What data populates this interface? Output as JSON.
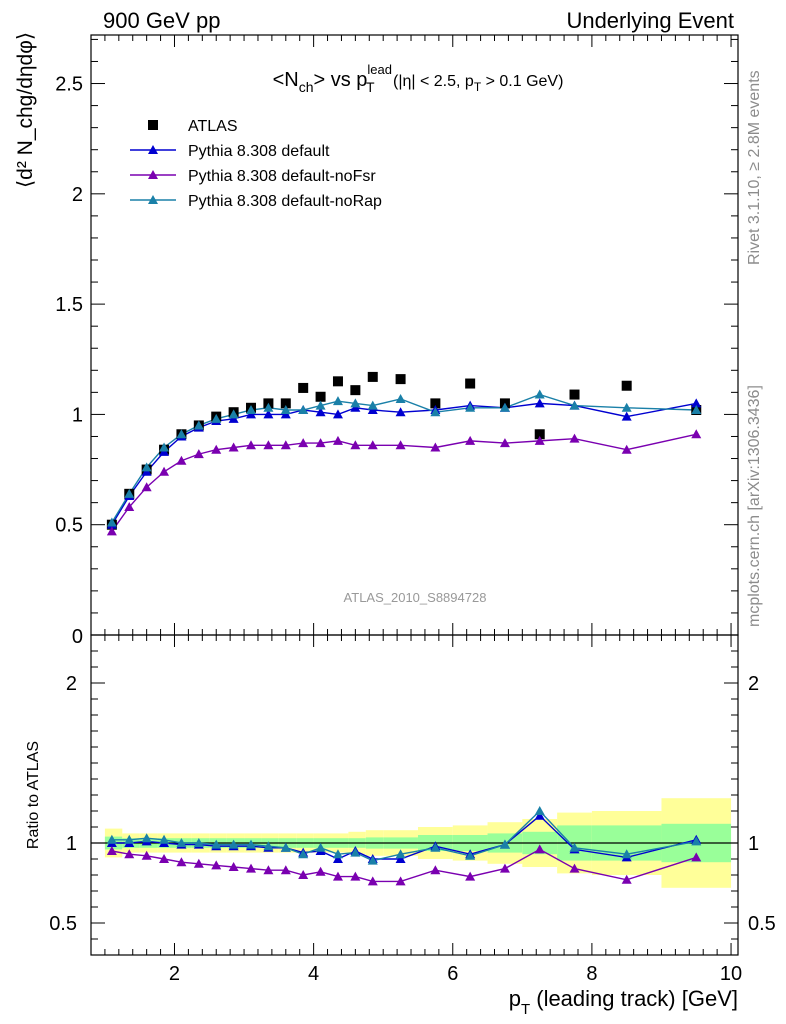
{
  "header": {
    "left": "900 GeV pp",
    "right": "Underlying Event",
    "side_events": "Rivet 3.1.10, ≥ 2.8M events",
    "side_source": "mcplots.cern.ch [arXiv:1306.3436]",
    "analysis": "ATLAS_2010_S8894728"
  },
  "colors": {
    "atlas": "#000000",
    "default": "#0000d0",
    "noFsr": "#7a00b0",
    "noRap": "#1a80a8",
    "band_inner": "#99ff99",
    "band_outer": "#ffff99"
  },
  "chart_data": [
    {
      "panel": "main",
      "type": "scatter",
      "title_parts": {
        "pre": "<N",
        "sub1": "ch",
        "mid": "> vs p",
        "sup": "lead",
        "sub2": "T",
        "post": " (|η| < 2.5, p",
        "sub3": "T",
        "post2": " > 0.1 GeV)"
      },
      "ylabel": "⟨d² N_chg/dηdφ⟩",
      "xlim": [
        0.8,
        10.1
      ],
      "ylim": [
        0,
        2.72
      ],
      "yticks": [
        0.5,
        1,
        1.5,
        2,
        2.5
      ],
      "ytick_labels": [
        "0.5",
        "1",
        "1.5",
        "2",
        "2.5"
      ],
      "y_zero_label": "0",
      "legend_position": "top-left",
      "legend": [
        "ATLAS",
        "Pythia 8.308 default",
        "Pythia 8.308 default-noFsr",
        "Pythia 8.308 default-noRap"
      ],
      "x": [
        1.1,
        1.35,
        1.6,
        1.85,
        2.1,
        2.35,
        2.6,
        2.85,
        3.1,
        3.35,
        3.6,
        3.85,
        4.1,
        4.35,
        4.6,
        4.85,
        5.25,
        5.75,
        6.25,
        6.75,
        7.25,
        7.75,
        8.5,
        9.5
      ],
      "series": [
        {
          "name": "ATLAS",
          "marker": "square",
          "values": [
            0.5,
            0.64,
            0.75,
            0.84,
            0.91,
            0.95,
            0.99,
            1.01,
            1.03,
            1.05,
            1.05,
            1.12,
            1.08,
            1.15,
            1.11,
            1.17,
            1.16,
            1.05,
            1.14,
            1.05,
            0.91,
            1.09,
            1.13,
            1.02
          ]
        },
        {
          "name": "Pythia 8.308 default",
          "marker": "triangle",
          "values": [
            0.5,
            0.63,
            0.74,
            0.83,
            0.9,
            0.94,
            0.97,
            0.98,
            1.0,
            1.0,
            1.0,
            1.02,
            1.01,
            1.0,
            1.03,
            1.02,
            1.01,
            1.02,
            1.04,
            1.03,
            1.05,
            1.04,
            0.99,
            1.05
          ]
        },
        {
          "name": "Pythia 8.308 default-noFsr",
          "marker": "triangle",
          "values": [
            0.47,
            0.58,
            0.67,
            0.74,
            0.79,
            0.82,
            0.84,
            0.85,
            0.86,
            0.86,
            0.86,
            0.87,
            0.87,
            0.88,
            0.86,
            0.86,
            0.86,
            0.85,
            0.88,
            0.87,
            0.88,
            0.89,
            0.84,
            0.91
          ]
        },
        {
          "name": "Pythia 8.308 default-noRap",
          "marker": "triangle",
          "values": [
            0.51,
            0.64,
            0.76,
            0.85,
            0.91,
            0.95,
            0.98,
            1.0,
            1.02,
            1.03,
            1.02,
            1.02,
            1.04,
            1.06,
            1.05,
            1.04,
            1.07,
            1.01,
            1.03,
            1.03,
            1.09,
            1.04,
            1.03,
            1.02
          ]
        }
      ]
    },
    {
      "panel": "ratio",
      "type": "line",
      "ylabel": "Ratio to ATLAS",
      "xlabel_parts": {
        "pre": "p",
        "sub": "T",
        "post": " (leading track) [GeV]"
      },
      "xlim": [
        0.8,
        10.1
      ],
      "ylim": [
        0.3,
        2.3
      ],
      "xticks": [
        2,
        4,
        6,
        8,
        10
      ],
      "xtick_labels": [
        "2",
        "4",
        "6",
        "8",
        "10"
      ],
      "yticks": [
        0.5,
        1,
        2
      ],
      "ytick_labels": [
        "0.5",
        "1",
        "2"
      ],
      "x": [
        1.1,
        1.35,
        1.6,
        1.85,
        2.1,
        2.35,
        2.6,
        2.85,
        3.1,
        3.35,
        3.6,
        3.85,
        4.1,
        4.35,
        4.6,
        4.85,
        5.25,
        5.75,
        6.25,
        6.75,
        7.25,
        7.75,
        8.5,
        9.5
      ],
      "bin_edges": [
        1.0,
        1.25,
        1.5,
        1.75,
        2.0,
        2.25,
        2.5,
        2.75,
        3.0,
        3.25,
        3.5,
        3.75,
        4.0,
        4.25,
        4.5,
        4.75,
        5.0,
        5.5,
        6.0,
        6.5,
        7.0,
        7.5,
        8.0,
        9.0,
        10.0
      ],
      "band_inner_halfwidth": [
        0.04,
        0.03,
        0.03,
        0.03,
        0.03,
        0.03,
        0.03,
        0.03,
        0.03,
        0.03,
        0.03,
        0.03,
        0.03,
        0.03,
        0.03,
        0.035,
        0.035,
        0.05,
        0.05,
        0.06,
        0.07,
        0.11,
        0.11,
        0.12
      ],
      "band_outer_halfwidth": [
        0.09,
        0.06,
        0.06,
        0.06,
        0.06,
        0.06,
        0.06,
        0.06,
        0.06,
        0.06,
        0.06,
        0.06,
        0.06,
        0.06,
        0.07,
        0.08,
        0.08,
        0.1,
        0.11,
        0.13,
        0.15,
        0.19,
        0.2,
        0.28
      ],
      "series": [
        {
          "name": "Pythia 8.308 default",
          "values": [
            1.0,
            1.0,
            1.01,
            1.0,
            0.99,
            0.99,
            0.98,
            0.98,
            0.98,
            0.97,
            0.97,
            0.94,
            0.95,
            0.9,
            0.95,
            0.9,
            0.9,
            0.98,
            0.93,
            0.99,
            1.17,
            0.96,
            0.91,
            1.02
          ]
        },
        {
          "name": "Pythia 8.308 default-noFsr",
          "values": [
            0.95,
            0.93,
            0.92,
            0.9,
            0.88,
            0.87,
            0.86,
            0.85,
            0.84,
            0.83,
            0.83,
            0.8,
            0.82,
            0.79,
            0.79,
            0.76,
            0.76,
            0.83,
            0.79,
            0.84,
            0.96,
            0.84,
            0.77,
            0.91
          ]
        },
        {
          "name": "Pythia 8.308 default-noRap",
          "values": [
            1.02,
            1.02,
            1.03,
            1.02,
            1.0,
            1.0,
            0.99,
            0.99,
            0.99,
            0.98,
            0.97,
            0.93,
            0.97,
            0.93,
            0.94,
            0.89,
            0.93,
            0.97,
            0.92,
            0.99,
            1.2,
            0.97,
            0.93,
            1.01
          ]
        }
      ]
    }
  ]
}
